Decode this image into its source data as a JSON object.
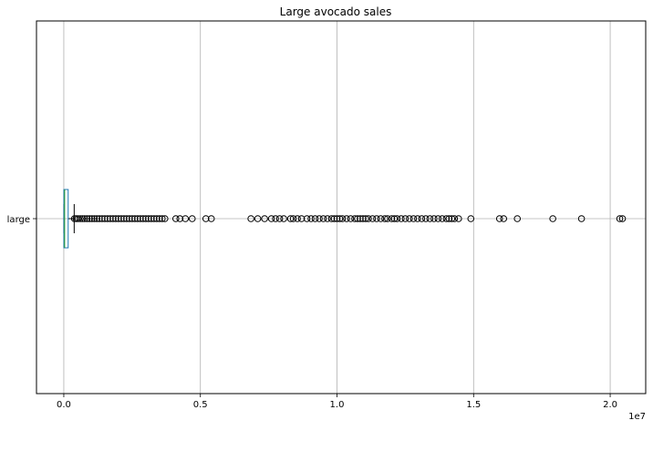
{
  "chart_data": {
    "type": "boxplot",
    "orientation": "horizontal",
    "title": "Large avocado sales",
    "category": "large",
    "xlim": [
      -1000000,
      21300000
    ],
    "x_ticks": [
      0,
      5000000,
      10000000,
      15000000,
      20000000
    ],
    "x_tick_labels": [
      "0.0",
      "0.5",
      "1.0",
      "1.5",
      "2.0"
    ],
    "x_offset_label": "1e7",
    "grid": true,
    "box": {
      "q1": 2000,
      "median": 30000,
      "q3": 160000,
      "whisker_low": 0,
      "whisker_high": 380000
    },
    "outliers": [
      390000,
      450000,
      520000,
      600000,
      680000,
      760000,
      850000,
      940000,
      1030000,
      1120000,
      1210000,
      1300000,
      1400000,
      1500000,
      1600000,
      1700000,
      1800000,
      1900000,
      2000000,
      2100000,
      2200000,
      2300000,
      2400000,
      2500000,
      2600000,
      2700000,
      2800000,
      2900000,
      3000000,
      3100000,
      3200000,
      3300000,
      3400000,
      3500000,
      3600000,
      3700000,
      4100000,
      4250000,
      4450000,
      4700000,
      5200000,
      5400000,
      6850000,
      7100000,
      7350000,
      7600000,
      7750000,
      7900000,
      8050000,
      8300000,
      8400000,
      8550000,
      8700000,
      8900000,
      9050000,
      9200000,
      9350000,
      9500000,
      9650000,
      9800000,
      9900000,
      10000000,
      10100000,
      10200000,
      10350000,
      10500000,
      10650000,
      10750000,
      10850000,
      10950000,
      11050000,
      11150000,
      11300000,
      11450000,
      11600000,
      11750000,
      11850000,
      12000000,
      12100000,
      12200000,
      12350000,
      12500000,
      12650000,
      12800000,
      12950000,
      13100000,
      13250000,
      13400000,
      13550000,
      13700000,
      13850000,
      14000000,
      14100000,
      14200000,
      14300000,
      14450000,
      14900000,
      15950000,
      16100000,
      16600000,
      17900000,
      18950000,
      20350000,
      20450000
    ],
    "colors": {
      "box": "#1f77b4",
      "median": "#2ca02c",
      "whisker": "#000000",
      "grid": "#b0b0b0",
      "outlier": "#000000"
    }
  }
}
